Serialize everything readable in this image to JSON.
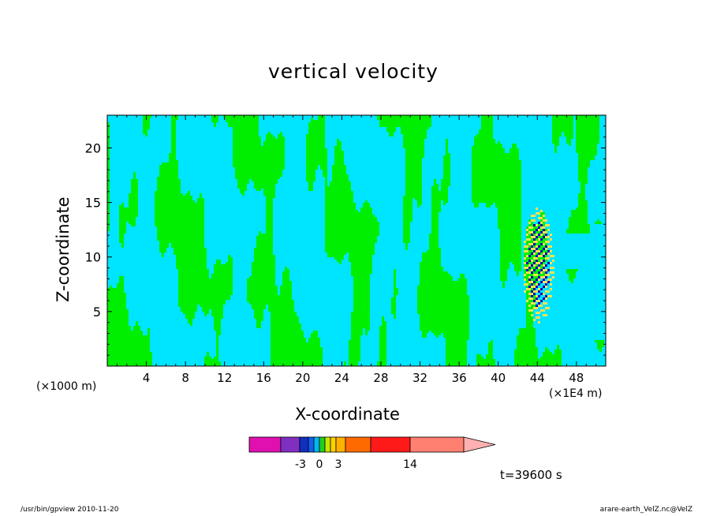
{
  "chart_data": {
    "type": "heatmap",
    "title": "vertical velocity",
    "xlabel": "X-coordinate",
    "ylabel": "Z-coordinate",
    "x_unit_left": "(×1000 m)",
    "x_unit_right": "(×1E4 m)",
    "x_ticks": [
      "4",
      "8",
      "12",
      "16",
      "20",
      "24",
      "28",
      "32",
      "36",
      "40",
      "44",
      "48"
    ],
    "x_tick_values": [
      4,
      8,
      12,
      16,
      20,
      24,
      28,
      32,
      36,
      40,
      44,
      48
    ],
    "y_ticks": [
      "5",
      "10",
      "15",
      "20"
    ],
    "y_tick_values": [
      5,
      10,
      15,
      20
    ],
    "xlim": [
      0,
      51
    ],
    "ylim": [
      0,
      23
    ],
    "time_label": "t=39600 s",
    "colorbar": {
      "labels": [
        "-3",
        "0",
        "3",
        "14"
      ],
      "label_values": [
        -3,
        0,
        3,
        14
      ],
      "colors": [
        "#e010b0",
        "#8030c0",
        "#1030c0",
        "#1060f0",
        "#00b8f0",
        "#20d020",
        "#c8e800",
        "#ffd000",
        "#ffb000",
        "#ff6a00",
        "#ff1a1a",
        "#ff8070",
        "#ffb0b0"
      ]
    },
    "field_colors": {
      "negative": "#00e5ff",
      "positive": "#00ee00",
      "strong_positive": "#ffe24d",
      "strong_negative": "#0000c0"
    }
  },
  "footer": {
    "left": "/usr/bin/gpview   2010-11-20",
    "right": "arare-earth_VelZ.nc@VelZ"
  }
}
